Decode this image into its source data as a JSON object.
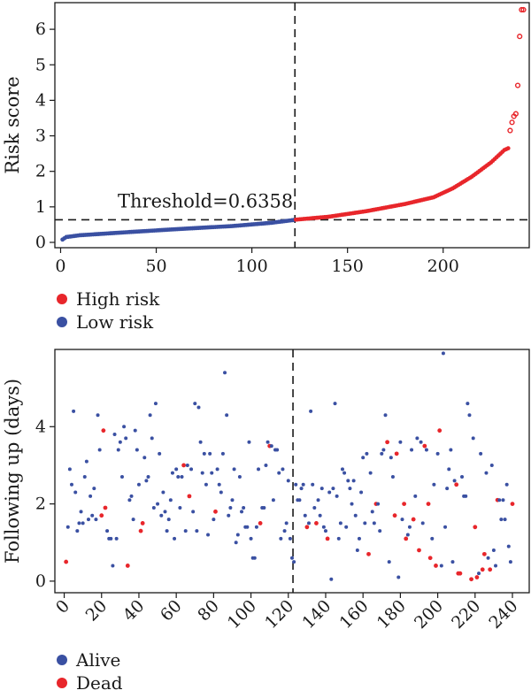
{
  "chart_data": [
    {
      "type": "scatter",
      "ylabel": "Risk score",
      "xlim": [
        -3,
        245
      ],
      "ylim": [
        -0.15,
        6.75
      ],
      "xticks": [
        0,
        50,
        100,
        150,
        200
      ],
      "yticks": [
        0,
        1,
        2,
        3,
        4,
        5,
        6
      ],
      "threshold": {
        "label": "Threshold=0.6358",
        "value": 0.6358,
        "cutoff_index": 122
      },
      "n_points": 242,
      "grid": false,
      "legend_placement": "bottom-left",
      "legend": [
        {
          "label": "High risk",
          "color": "#e8262b"
        },
        {
          "label": "Low risk",
          "color": "#3a50a2"
        }
      ],
      "series": [
        {
          "name": "Low risk",
          "color": "#3a50a2",
          "x_range": [
            1,
            122
          ],
          "curve": [
            [
              1,
              0.08
            ],
            [
              3,
              0.15
            ],
            [
              10,
              0.2
            ],
            [
              30,
              0.27
            ],
            [
              60,
              0.37
            ],
            [
              90,
              0.46
            ],
            [
              110,
              0.55
            ],
            [
              122,
              0.63
            ]
          ]
        },
        {
          "name": "High risk",
          "color": "#e8262b",
          "x_range": [
            123,
            242
          ],
          "curve": [
            [
              123,
              0.64
            ],
            [
              140,
              0.72
            ],
            [
              160,
              0.88
            ],
            [
              180,
              1.08
            ],
            [
              195,
              1.27
            ],
            [
              205,
              1.52
            ],
            [
              215,
              1.85
            ],
            [
              225,
              2.25
            ],
            [
              232,
              2.6
            ],
            [
              234,
              2.65
            ],
            [
              235,
              3.15
            ],
            [
              236,
              3.38
            ],
            [
              237,
              3.55
            ],
            [
              238,
              3.62
            ],
            [
              239,
              4.42
            ],
            [
              240,
              5.8
            ],
            [
              241,
              6.55
            ]
          ]
        }
      ]
    },
    {
      "type": "scatter",
      "ylabel": "Following up (days)",
      "xlim": [
        -5,
        249
      ],
      "ylim": [
        -0.3,
        6.0
      ],
      "xticks": [
        0,
        20,
        40,
        60,
        80,
        100,
        120,
        140,
        160,
        180,
        200,
        220,
        240
      ],
      "yticks": [
        0,
        2,
        4
      ],
      "cutoff_index": 122,
      "grid": false,
      "legend_placement": "bottom-left",
      "legend": [
        {
          "label": "Alive",
          "color": "#3a50a2"
        },
        {
          "label": "Dead",
          "color": "#e8262b"
        }
      ],
      "points": [
        [
          1,
          0.5,
          "Dead"
        ],
        [
          2,
          1.4,
          "Alive"
        ],
        [
          3,
          2.9,
          "Alive"
        ],
        [
          4,
          2.5,
          "Alive"
        ],
        [
          5,
          4.4,
          "Alive"
        ],
        [
          6,
          2.3,
          "Alive"
        ],
        [
          7,
          1.3,
          "Alive"
        ],
        [
          8,
          1.5,
          "Alive"
        ],
        [
          9,
          1.8,
          "Alive"
        ],
        [
          10,
          1.5,
          "Alive"
        ],
        [
          11,
          2.7,
          "Alive"
        ],
        [
          12,
          3.1,
          "Alive"
        ],
        [
          13,
          1.6,
          "Alive"
        ],
        [
          14,
          2.2,
          "Alive"
        ],
        [
          15,
          1.7,
          "Alive"
        ],
        [
          16,
          2.4,
          "Alive"
        ],
        [
          17,
          1.6,
          "Alive"
        ],
        [
          18,
          4.3,
          "Alive"
        ],
        [
          19,
          3.4,
          "Alive"
        ],
        [
          20,
          1.7,
          "Dead"
        ],
        [
          21,
          3.9,
          "Dead"
        ],
        [
          22,
          1.9,
          "Dead"
        ],
        [
          23,
          1.3,
          "Alive"
        ],
        [
          24,
          1.1,
          "Alive"
        ],
        [
          25,
          1.1,
          "Alive"
        ],
        [
          26,
          0.4,
          "Alive"
        ],
        [
          27,
          3.8,
          "Alive"
        ],
        [
          28,
          1.1,
          "Alive"
        ],
        [
          29,
          3.4,
          "Alive"
        ],
        [
          30,
          3.6,
          "Alive"
        ],
        [
          31,
          2.7,
          "Alive"
        ],
        [
          32,
          4.0,
          "Alive"
        ],
        [
          33,
          3.7,
          "Alive"
        ],
        [
          34,
          0.4,
          "Dead"
        ],
        [
          35,
          2.1,
          "Alive"
        ],
        [
          36,
          2.2,
          "Alive"
        ],
        [
          37,
          1.6,
          "Alive"
        ],
        [
          38,
          3.9,
          "Alive"
        ],
        [
          39,
          3.4,
          "Alive"
        ],
        [
          40,
          2.5,
          "Alive"
        ],
        [
          41,
          1.3,
          "Dead"
        ],
        [
          42,
          1.5,
          "Dead"
        ],
        [
          43,
          3.2,
          "Alive"
        ],
        [
          44,
          2.6,
          "Alive"
        ],
        [
          45,
          2.7,
          "Alive"
        ],
        [
          46,
          4.3,
          "Alive"
        ],
        [
          47,
          3.7,
          "Alive"
        ],
        [
          48,
          1.9,
          "Alive"
        ],
        [
          49,
          4.6,
          "Alive"
        ],
        [
          50,
          2.0,
          "Alive"
        ],
        [
          51,
          3.3,
          "Alive"
        ],
        [
          52,
          1.7,
          "Alive"
        ],
        [
          53,
          2.3,
          "Alive"
        ],
        [
          54,
          1.8,
          "Alive"
        ],
        [
          55,
          1.3,
          "Alive"
        ],
        [
          56,
          1.6,
          "Alive"
        ],
        [
          57,
          2.1,
          "Alive"
        ],
        [
          58,
          2.8,
          "Alive"
        ],
        [
          59,
          1.1,
          "Alive"
        ],
        [
          60,
          2.9,
          "Alive"
        ],
        [
          61,
          2.7,
          "Alive"
        ],
        [
          62,
          1.9,
          "Alive"
        ],
        [
          63,
          2.7,
          "Alive"
        ],
        [
          64,
          3.0,
          "Dead"
        ],
        [
          65,
          1.3,
          "Alive"
        ],
        [
          66,
          3.0,
          "Alive"
        ],
        [
          67,
          2.2,
          "Dead"
        ],
        [
          68,
          2.9,
          "Alive"
        ],
        [
          69,
          1.8,
          "Alive"
        ],
        [
          70,
          4.6,
          "Alive"
        ],
        [
          71,
          1.3,
          "Alive"
        ],
        [
          72,
          4.5,
          "Alive"
        ],
        [
          73,
          3.6,
          "Alive"
        ],
        [
          74,
          2.8,
          "Alive"
        ],
        [
          75,
          3.3,
          "Alive"
        ],
        [
          76,
          2.5,
          "Alive"
        ],
        [
          77,
          1.2,
          "Alive"
        ],
        [
          78,
          3.3,
          "Alive"
        ],
        [
          79,
          2.8,
          "Alive"
        ],
        [
          80,
          1.6,
          "Alive"
        ],
        [
          81,
          1.8,
          "Dead"
        ],
        [
          82,
          2.9,
          "Alive"
        ],
        [
          83,
          2.5,
          "Alive"
        ],
        [
          84,
          2.3,
          "Alive"
        ],
        [
          85,
          3.3,
          "Alive"
        ],
        [
          86,
          5.4,
          "Alive"
        ],
        [
          87,
          4.3,
          "Alive"
        ],
        [
          88,
          1.7,
          "Alive"
        ],
        [
          89,
          1.9,
          "Alive"
        ],
        [
          90,
          2.1,
          "Alive"
        ],
        [
          91,
          2.9,
          "Alive"
        ],
        [
          92,
          1.0,
          "Alive"
        ],
        [
          93,
          1.2,
          "Alive"
        ],
        [
          94,
          2.7,
          "Alive"
        ],
        [
          95,
          1.8,
          "Alive"
        ],
        [
          96,
          1.9,
          "Alive"
        ],
        [
          97,
          1.4,
          "Alive"
        ],
        [
          98,
          1.4,
          "Alive"
        ],
        [
          99,
          3.6,
          "Alive"
        ],
        [
          100,
          1.1,
          "Alive"
        ],
        [
          101,
          0.6,
          "Alive"
        ],
        [
          102,
          0.6,
          "Alive"
        ],
        [
          103,
          1.4,
          "Alive"
        ],
        [
          104,
          2.9,
          "Alive"
        ],
        [
          105,
          1.5,
          "Dead"
        ],
        [
          106,
          1.9,
          "Alive"
        ],
        [
          107,
          1.9,
          "Alive"
        ],
        [
          108,
          3.0,
          "Alive"
        ],
        [
          109,
          3.6,
          "Alive"
        ],
        [
          110,
          3.5,
          "Dead"
        ],
        [
          111,
          3.5,
          "Alive"
        ],
        [
          112,
          2.1,
          "Alive"
        ],
        [
          113,
          3.4,
          "Alive"
        ],
        [
          114,
          3.4,
          "Alive"
        ],
        [
          115,
          2.8,
          "Alive"
        ],
        [
          116,
          1.1,
          "Alive"
        ],
        [
          117,
          2.9,
          "Alive"
        ],
        [
          118,
          1.3,
          "Alive"
        ],
        [
          119,
          1.5,
          "Alive"
        ],
        [
          120,
          2.6,
          "Alive"
        ],
        [
          121,
          1.1,
          "Alive"
        ],
        [
          122,
          0.6,
          "Alive"
        ],
        [
          123,
          0.5,
          "Alive"
        ],
        [
          124,
          2.5,
          "Alive"
        ],
        [
          125,
          2.1,
          "Alive"
        ],
        [
          126,
          2.1,
          "Alive"
        ],
        [
          127,
          2.4,
          "Alive"
        ],
        [
          128,
          2.5,
          "Alive"
        ],
        [
          129,
          1.7,
          "Alive"
        ],
        [
          130,
          1.4,
          "Dead"
        ],
        [
          131,
          1.5,
          "Alive"
        ],
        [
          132,
          4.4,
          "Alive"
        ],
        [
          133,
          2.5,
          "Alive"
        ],
        [
          134,
          1.9,
          "Alive"
        ],
        [
          135,
          1.5,
          "Dead"
        ],
        [
          136,
          2.1,
          "Alive"
        ],
        [
          137,
          1.7,
          "Alive"
        ],
        [
          138,
          2.4,
          "Alive"
        ],
        [
          139,
          1.4,
          "Alive"
        ],
        [
          140,
          1.3,
          "Alive"
        ],
        [
          141,
          1.1,
          "Dead"
        ],
        [
          142,
          2.3,
          "Alive"
        ],
        [
          143,
          0.05,
          "Alive"
        ],
        [
          144,
          2.4,
          "Alive"
        ],
        [
          145,
          4.6,
          "Alive"
        ],
        [
          146,
          2.2,
          "Alive"
        ],
        [
          147,
          1.1,
          "Alive"
        ],
        [
          148,
          1.5,
          "Alive"
        ],
        [
          149,
          2.9,
          "Alive"
        ],
        [
          150,
          2.8,
          "Alive"
        ],
        [
          151,
          1.4,
          "Alive"
        ],
        [
          152,
          2.6,
          "Alive"
        ],
        [
          153,
          2.4,
          "Alive"
        ],
        [
          154,
          2.0,
          "Alive"
        ],
        [
          155,
          2.6,
          "Alive"
        ],
        [
          156,
          1.7,
          "Alive"
        ],
        [
          157,
          0.8,
          "Alive"
        ],
        [
          158,
          1.1,
          "Alive"
        ],
        [
          159,
          2.3,
          "Alive"
        ],
        [
          160,
          3.2,
          "Alive"
        ],
        [
          161,
          1.5,
          "Alive"
        ],
        [
          162,
          3.3,
          "Alive"
        ],
        [
          163,
          0.7,
          "Dead"
        ],
        [
          164,
          2.8,
          "Alive"
        ],
        [
          165,
          1.8,
          "Alive"
        ],
        [
          166,
          1.5,
          "Alive"
        ],
        [
          167,
          2.0,
          "Dead"
        ],
        [
          168,
          2.0,
          "Alive"
        ],
        [
          169,
          1.3,
          "Alive"
        ],
        [
          170,
          3.3,
          "Alive"
        ],
        [
          171,
          3.4,
          "Alive"
        ],
        [
          172,
          4.3,
          "Alive"
        ],
        [
          173,
          3.6,
          "Dead"
        ],
        [
          174,
          0.5,
          "Alive"
        ],
        [
          175,
          3.2,
          "Alive"
        ],
        [
          176,
          2.7,
          "Alive"
        ],
        [
          177,
          1.7,
          "Dead"
        ],
        [
          178,
          3.3,
          "Dead"
        ],
        [
          179,
          0.1,
          "Alive"
        ],
        [
          180,
          3.6,
          "Alive"
        ],
        [
          181,
          1.6,
          "Alive"
        ],
        [
          182,
          2.0,
          "Dead"
        ],
        [
          183,
          1.1,
          "Dead"
        ],
        [
          184,
          1.2,
          "Alive"
        ],
        [
          185,
          1.4,
          "Alive"
        ],
        [
          186,
          3.4,
          "Alive"
        ],
        [
          187,
          1.6,
          "Dead"
        ],
        [
          188,
          2.2,
          "Alive"
        ],
        [
          189,
          3.7,
          "Alive"
        ],
        [
          190,
          0.8,
          "Dead"
        ],
        [
          191,
          3.6,
          "Alive"
        ],
        [
          192,
          1.5,
          "Alive"
        ],
        [
          193,
          3.5,
          "Dead"
        ],
        [
          194,
          3.4,
          "Alive"
        ],
        [
          195,
          2.0,
          "Dead"
        ],
        [
          196,
          0.6,
          "Dead"
        ],
        [
          197,
          1.1,
          "Alive"
        ],
        [
          198,
          2.5,
          "Alive"
        ],
        [
          199,
          0.4,
          "Dead"
        ],
        [
          200,
          3.3,
          "Alive"
        ],
        [
          201,
          3.9,
          "Dead"
        ],
        [
          202,
          0.4,
          "Alive"
        ],
        [
          203,
          5.9,
          "Alive"
        ],
        [
          204,
          1.4,
          "Alive"
        ],
        [
          205,
          2.4,
          "Alive"
        ],
        [
          206,
          2.9,
          "Alive"
        ],
        [
          207,
          3.4,
          "Alive"
        ],
        [
          208,
          0.5,
          "Alive"
        ],
        [
          209,
          2.6,
          "Alive"
        ],
        [
          210,
          2.5,
          "Dead"
        ],
        [
          211,
          0.2,
          "Dead"
        ],
        [
          212,
          0.2,
          "Dead"
        ],
        [
          213,
          2.7,
          "Alive"
        ],
        [
          214,
          2.2,
          "Alive"
        ],
        [
          215,
          2.2,
          "Alive"
        ],
        [
          216,
          4.6,
          "Alive"
        ],
        [
          217,
          4.3,
          "Alive"
        ],
        [
          218,
          0.05,
          "Dead"
        ],
        [
          219,
          3.7,
          "Alive"
        ],
        [
          220,
          1.4,
          "Dead"
        ],
        [
          221,
          0.1,
          "Dead"
        ],
        [
          222,
          0.2,
          "Alive"
        ],
        [
          223,
          3.3,
          "Alive"
        ],
        [
          224,
          0.3,
          "Dead"
        ],
        [
          225,
          0.7,
          "Dead"
        ],
        [
          226,
          2.8,
          "Alive"
        ],
        [
          227,
          0.6,
          "Alive"
        ],
        [
          228,
          0.3,
          "Dead"
        ],
        [
          229,
          3.0,
          "Alive"
        ],
        [
          230,
          0.8,
          "Alive"
        ],
        [
          231,
          0.4,
          "Alive"
        ],
        [
          232,
          2.1,
          "Dead"
        ],
        [
          233,
          2.1,
          "Alive"
        ],
        [
          234,
          1.6,
          "Alive"
        ],
        [
          235,
          2.1,
          "Alive"
        ],
        [
          236,
          1.6,
          "Alive"
        ],
        [
          237,
          2.5,
          "Alive"
        ],
        [
          238,
          0.9,
          "Alive"
        ],
        [
          239,
          0.5,
          "Alive"
        ],
        [
          240,
          2.0,
          "Dead"
        ]
      ]
    }
  ]
}
